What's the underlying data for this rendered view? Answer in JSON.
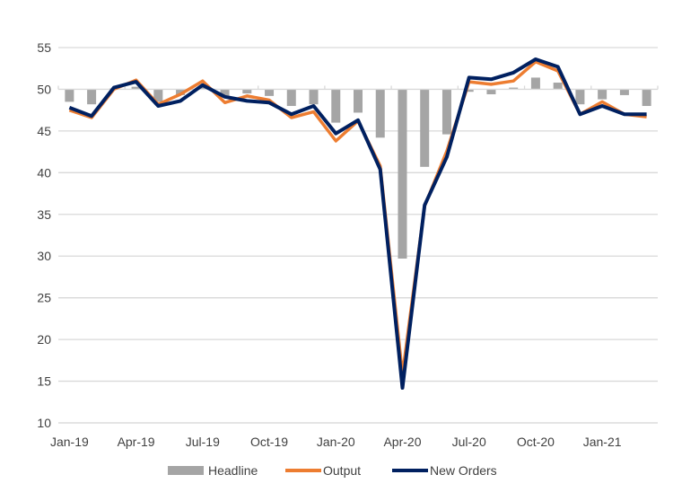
{
  "chart_data": {
    "type": "bar+line",
    "title": "",
    "xlabel": "",
    "ylabel": "",
    "ylim": [
      10,
      55
    ],
    "yticks": [
      10,
      15,
      20,
      25,
      30,
      35,
      40,
      45,
      50,
      55
    ],
    "bar_baseline": 50,
    "grid": true,
    "legend_position": "bottom",
    "categories": [
      "Jan-19",
      "Feb-19",
      "Mar-19",
      "Apr-19",
      "May-19",
      "Jun-19",
      "Jul-19",
      "Aug-19",
      "Sep-19",
      "Oct-19",
      "Nov-19",
      "Dec-19",
      "Jan-20",
      "Feb-20",
      "Mar-20",
      "Apr-20",
      "May-20",
      "Jun-20",
      "Jul-20",
      "Aug-20",
      "Sep-20",
      "Oct-20",
      "Nov-20",
      "Dec-20",
      "Jan-21",
      "Feb-21",
      "Mar-21"
    ],
    "xtick_labels": [
      "Jan-19",
      "Apr-19",
      "Jul-19",
      "Oct-19",
      "Jan-20",
      "Apr-20",
      "Jul-20",
      "Oct-20",
      "Jan-21"
    ],
    "series": [
      {
        "name": "Headline",
        "kind": "bar",
        "color": "#a5a5a5",
        "values": [
          48.5,
          48.2,
          50.1,
          50.3,
          48.5,
          49.3,
          50.3,
          49.0,
          49.5,
          49.2,
          48.0,
          48.2,
          46.0,
          47.2,
          44.2,
          29.7,
          40.7,
          44.6,
          49.7,
          49.4,
          50.2,
          51.4,
          50.8,
          48.2,
          48.8,
          49.3,
          48.0
        ]
      },
      {
        "name": "Output",
        "kind": "line",
        "color": "#ed7d31",
        "values": [
          47.5,
          46.6,
          50.0,
          51.1,
          48.2,
          49.4,
          51.0,
          48.4,
          49.2,
          48.7,
          46.6,
          47.3,
          43.8,
          46.2,
          40.8,
          15.8,
          36.0,
          42.6,
          50.9,
          50.6,
          51.0,
          53.3,
          52.2,
          47.0,
          48.5,
          47.0,
          46.7
        ]
      },
      {
        "name": "New Orders",
        "kind": "line",
        "color": "#002060",
        "values": [
          47.8,
          46.8,
          50.2,
          50.9,
          48.0,
          48.6,
          50.5,
          49.1,
          48.6,
          48.4,
          47.0,
          48.0,
          44.7,
          46.3,
          40.4,
          14.2,
          36.1,
          41.9,
          51.4,
          51.2,
          52.0,
          53.6,
          52.7,
          47.0,
          48.0,
          47.0,
          47.0
        ]
      }
    ]
  }
}
